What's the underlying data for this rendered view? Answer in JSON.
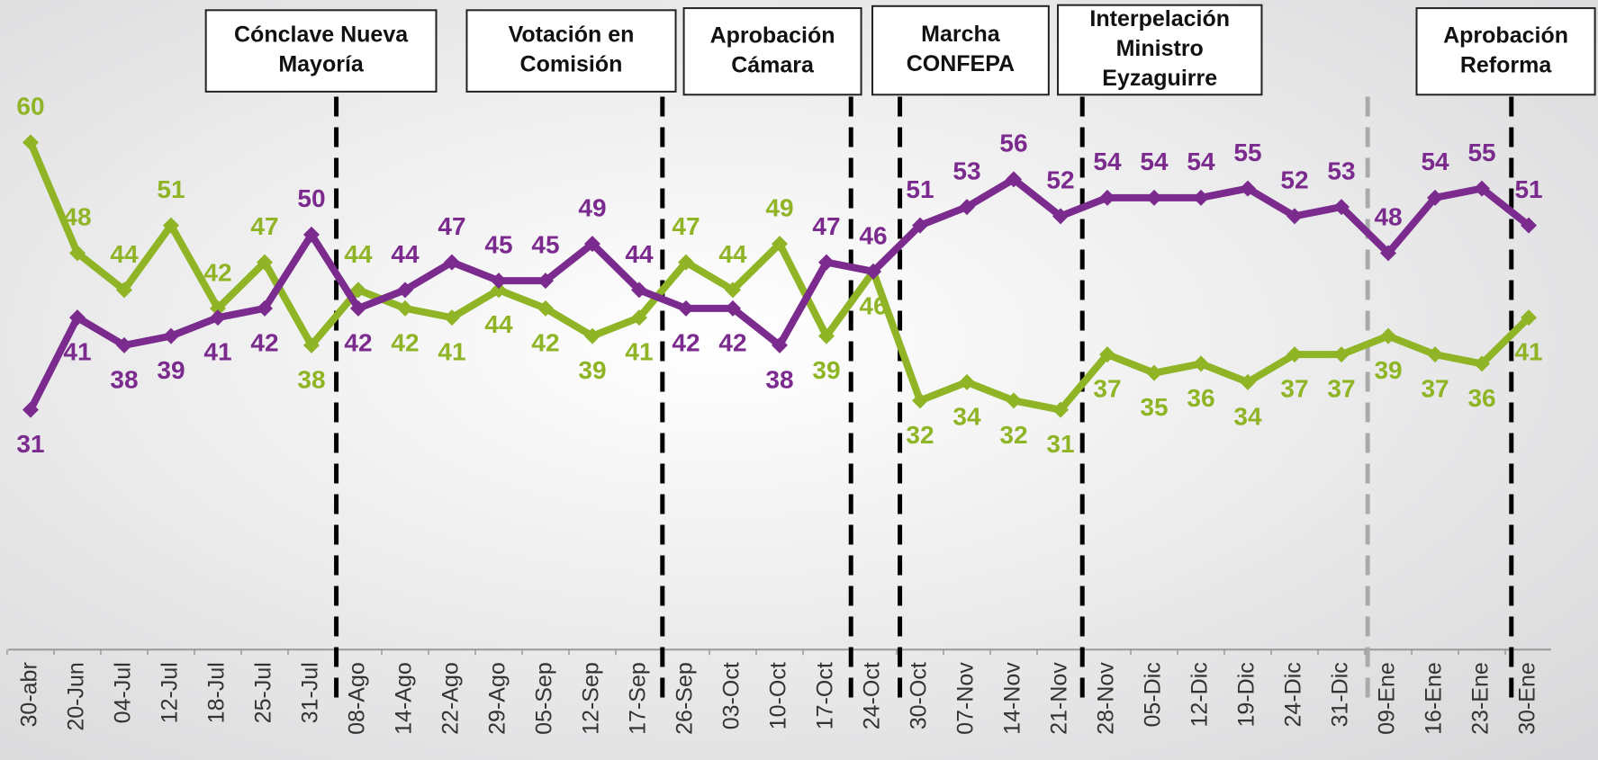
{
  "chart_data": {
    "type": "line",
    "categories": [
      "30-abr",
      "20-Jun",
      "04-Jul",
      "12-Jul",
      "18-Jul",
      "25-Jul",
      "31-Jul",
      "08-Ago",
      "14-Ago",
      "22-Ago",
      "29-Ago",
      "05-Sep",
      "12-Sep",
      "17-Sep",
      "26-Sep",
      "03-Oct",
      "10-Oct",
      "17-Oct",
      "24-Oct",
      "30-Oct",
      "07-Nov",
      "14-Nov",
      "21-Nov",
      "28-Nov",
      "05-Dic",
      "12-Dic",
      "19-Dic",
      "24-Dic",
      "31-Dic",
      "09-Ene",
      "16-Ene",
      "23-Ene",
      "30-Ene"
    ],
    "series": [
      {
        "color": "#8fb526",
        "values": [
          60,
          48,
          44,
          51,
          42,
          47,
          38,
          44,
          42,
          41,
          44,
          42,
          39,
          41,
          47,
          44,
          49,
          39,
          46,
          32,
          34,
          32,
          31,
          37,
          35,
          36,
          34,
          37,
          37,
          39,
          37,
          36,
          41
        ]
      },
      {
        "color": "#7b2a8e",
        "values": [
          31,
          41,
          38,
          39,
          41,
          42,
          50,
          42,
          44,
          47,
          45,
          45,
          49,
          44,
          42,
          42,
          38,
          47,
          46,
          51,
          53,
          56,
          52,
          54,
          54,
          54,
          55,
          52,
          53,
          48,
          54,
          55,
          51
        ]
      }
    ],
    "ylim": [
      5,
      75
    ],
    "events": [
      {
        "lines": [
          "Cónclave Nueva",
          "Mayoría"
        ]
      },
      {
        "lines": [
          "Votación en",
          "Comisión"
        ]
      },
      {
        "lines": [
          "Aprobación",
          "Cámara"
        ]
      },
      {
        "lines": [
          "Marcha",
          "CONFEPA"
        ]
      },
      {
        "lines": [
          "Interpelación",
          "Ministro",
          "Eyzaguirre"
        ]
      },
      {
        "lines": [
          "Aprobación",
          "Reforma"
        ]
      }
    ]
  }
}
